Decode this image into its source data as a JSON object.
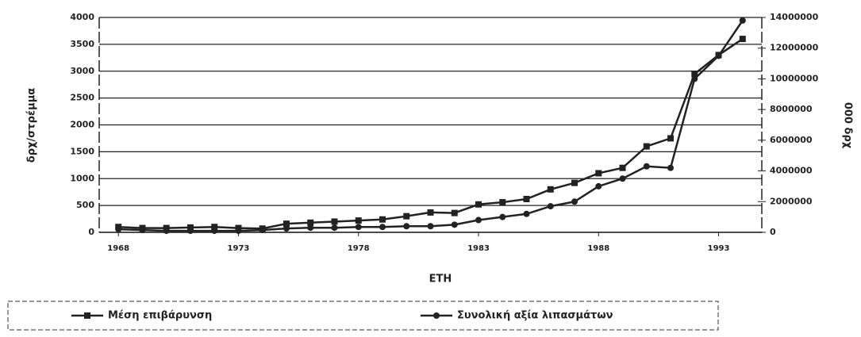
{
  "chart_data": {
    "type": "line",
    "x_label": "ΕΤΗ",
    "y_label": "δρχ/στρέμμα",
    "y2_label": "000 δρχ",
    "x": [
      1968,
      1969,
      1970,
      1971,
      1972,
      1973,
      1974,
      1975,
      1976,
      1977,
      1978,
      1979,
      1980,
      1981,
      1982,
      1983,
      1984,
      1985,
      1986,
      1987,
      1988,
      1989,
      1990,
      1991,
      1992,
      1993,
      1994
    ],
    "series": [
      {
        "name": "Μέση επιβάρυνση",
        "color": "#222222",
        "marker": "square",
        "values": [
          100,
          80,
          80,
          90,
          100,
          80,
          70,
          160,
          180,
          200,
          220,
          240,
          300,
          370,
          360,
          520,
          560,
          620,
          800,
          920,
          1100,
          1200,
          1600,
          1750,
          2950,
          3300,
          3600
        ]
      },
      {
        "name": "Συνολική αξία λιπασμάτων",
        "color": "#222222",
        "marker": "circle",
        "axis": "y2",
        "values": [
          200000,
          150000,
          100000,
          100000,
          100000,
          100000,
          150000,
          250000,
          300000,
          300000,
          350000,
          350000,
          400000,
          400000,
          500000,
          800000,
          1000000,
          1200000,
          1700000,
          2000000,
          3000000,
          3500000,
          4300000,
          4200000,
          10000000,
          11500000,
          13800000
        ]
      }
    ],
    "xlim": [
      1967.2,
      1994.8
    ],
    "xticks": [
      1968,
      1973,
      1978,
      1983,
      1988,
      1993
    ],
    "ylim": [
      0,
      4000
    ],
    "yticks": [
      0,
      500,
      1000,
      1500,
      2000,
      2500,
      3000,
      3500,
      4000
    ],
    "y2lim": [
      0,
      14000000
    ],
    "y2ticks": [
      0,
      2000000,
      4000000,
      6000000,
      8000000,
      10000000,
      12000000,
      14000000
    ],
    "grid": true,
    "legend": "bottom"
  }
}
